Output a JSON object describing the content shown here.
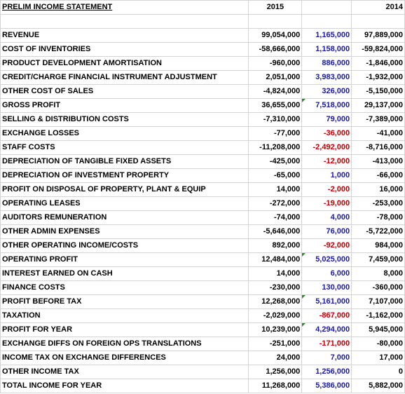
{
  "header": {
    "title": "PRELIM INCOME STATEMENT",
    "year_current": "2015",
    "year_diff": "",
    "year_prior": "2014"
  },
  "rows": [
    {
      "label": "REVENUE",
      "y2015": "99,054,000",
      "diff": "1,165,000",
      "y2014": "97,889,000",
      "diff_sign": "pos",
      "flag": false
    },
    {
      "label": "COST OF INVENTORIES",
      "y2015": "-58,666,000",
      "diff": "1,158,000",
      "y2014": "-59,824,000",
      "diff_sign": "pos",
      "flag": false
    },
    {
      "label": "PRODUCT DEVELOPMENT AMORTISATION",
      "y2015": "-960,000",
      "diff": "886,000",
      "y2014": "-1,846,000",
      "diff_sign": "pos",
      "flag": false
    },
    {
      "label": "CREDIT/CHARGE FINANCIAL INSTRUMENT ADJUSTMENT",
      "y2015": "2,051,000",
      "diff": "3,983,000",
      "y2014": "-1,932,000",
      "diff_sign": "pos",
      "flag": false
    },
    {
      "label": "OTHER COST OF SALES",
      "y2015": "-4,824,000",
      "diff": "326,000",
      "y2014": "-5,150,000",
      "diff_sign": "pos",
      "flag": false
    },
    {
      "label": "GROSS PROFIT",
      "y2015": "36,655,000",
      "diff": "7,518,000",
      "y2014": "29,137,000",
      "diff_sign": "pos",
      "flag": true
    },
    {
      "label": "SELLING & DISTRIBUTION COSTS",
      "y2015": "-7,310,000",
      "diff": "79,000",
      "y2014": "-7,389,000",
      "diff_sign": "pos",
      "flag": false
    },
    {
      "label": "EXCHANGE LOSSES",
      "y2015": "-77,000",
      "diff": "-36,000",
      "y2014": "-41,000",
      "diff_sign": "neg",
      "flag": false
    },
    {
      "label": "STAFF COSTS",
      "y2015": "-11,208,000",
      "diff": "-2,492,000",
      "y2014": "-8,716,000",
      "diff_sign": "neg",
      "flag": false
    },
    {
      "label": "DEPRECIATION OF TANGIBLE FIXED ASSETS",
      "y2015": "-425,000",
      "diff": "-12,000",
      "y2014": "-413,000",
      "diff_sign": "neg",
      "flag": false
    },
    {
      "label": "DEPRECIATION OF INVESTMENT PROPERTY",
      "y2015": "-65,000",
      "diff": "1,000",
      "y2014": "-66,000",
      "diff_sign": "pos",
      "flag": false
    },
    {
      "label": "PROFIT ON DISPOSAL OF PROPERTY, PLANT & EQUIP",
      "y2015": "14,000",
      "diff": "-2,000",
      "y2014": "16,000",
      "diff_sign": "neg",
      "flag": false
    },
    {
      "label": "OPERATING LEASES",
      "y2015": "-272,000",
      "diff": "-19,000",
      "y2014": "-253,000",
      "diff_sign": "neg",
      "flag": false
    },
    {
      "label": "AUDITORS REMUNERATION",
      "y2015": "-74,000",
      "diff": "4,000",
      "y2014": "-78,000",
      "diff_sign": "pos",
      "flag": false
    },
    {
      "label": "OTHER ADMIN EXPENSES",
      "y2015": "-5,646,000",
      "diff": "76,000",
      "y2014": "-5,722,000",
      "diff_sign": "pos",
      "flag": false
    },
    {
      "label": "OTHER OPERATING INCOME/COSTS",
      "y2015": "892,000",
      "diff": "-92,000",
      "y2014": "984,000",
      "diff_sign": "neg",
      "flag": false
    },
    {
      "label": "OPERATING PROFIT",
      "y2015": "12,484,000",
      "diff": "5,025,000",
      "y2014": "7,459,000",
      "diff_sign": "pos",
      "flag": true
    },
    {
      "label": "INTEREST EARNED ON CASH",
      "y2015": "14,000",
      "diff": "6,000",
      "y2014": "8,000",
      "diff_sign": "pos",
      "flag": false
    },
    {
      "label": "FINANCE COSTS",
      "y2015": "-230,000",
      "diff": "130,000",
      "y2014": "-360,000",
      "diff_sign": "pos",
      "flag": false
    },
    {
      "label": "PROFIT BEFORE TAX",
      "y2015": "12,268,000",
      "diff": "5,161,000",
      "y2014": "7,107,000",
      "diff_sign": "pos",
      "flag": true
    },
    {
      "label": "TAXATION",
      "y2015": "-2,029,000",
      "diff": "-867,000",
      "y2014": "-1,162,000",
      "diff_sign": "neg",
      "flag": false
    },
    {
      "label": "PROFIT FOR YEAR",
      "y2015": "10,239,000",
      "diff": "4,294,000",
      "y2014": "5,945,000",
      "diff_sign": "pos",
      "flag": true
    },
    {
      "label": "EXCHANGE DIFFS ON FOREIGN OPS TRANSLATIONS",
      "y2015": "-251,000",
      "diff": "-171,000",
      "y2014": "-80,000",
      "diff_sign": "neg",
      "flag": false
    },
    {
      "label": "INCOME TAX ON EXCHANGE DIFFERENCES",
      "y2015": "24,000",
      "diff": "7,000",
      "y2014": "17,000",
      "diff_sign": "pos",
      "flag": false
    },
    {
      "label": "OTHER INCOME TAX",
      "y2015": "1,256,000",
      "diff": "1,256,000",
      "y2014": "0",
      "diff_sign": "pos",
      "flag": false
    },
    {
      "label": "TOTAL INCOME FOR YEAR",
      "y2015": "11,268,000",
      "diff": "5,386,000",
      "y2014": "5,882,000",
      "diff_sign": "pos",
      "flag": false
    }
  ]
}
